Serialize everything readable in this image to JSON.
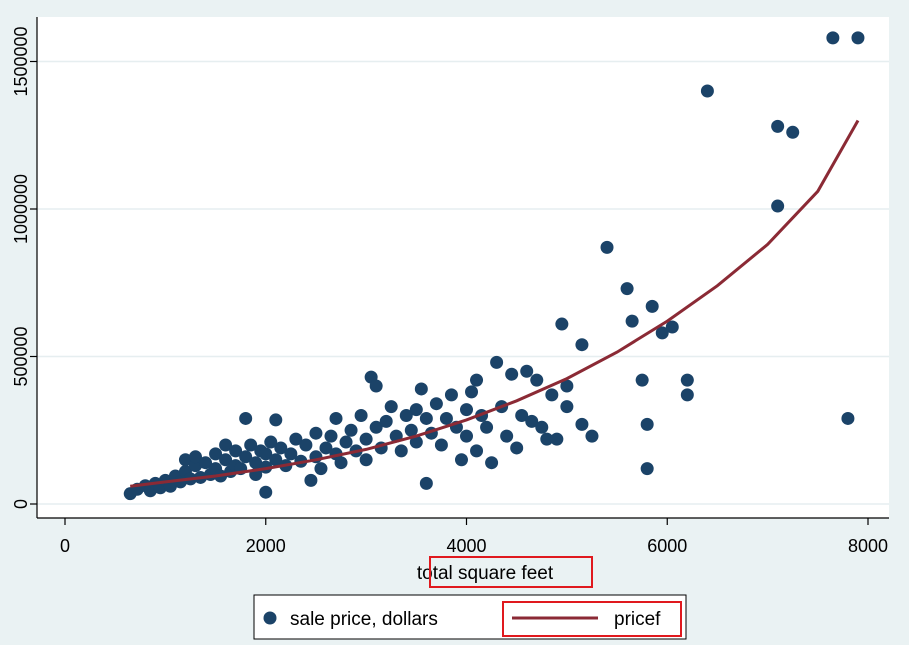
{
  "chart_data": {
    "type": "scatter",
    "xlabel": "total square feet",
    "ylabel": "",
    "xlim": [
      0,
      8000
    ],
    "ylim": [
      0,
      1600000
    ],
    "x_ticks": [
      0,
      2000,
      4000,
      6000,
      8000
    ],
    "y_ticks": [
      0,
      500000,
      1000000,
      1500000
    ],
    "x_tick_labels": [
      "0",
      "2000",
      "4000",
      "6000",
      "8000"
    ],
    "y_tick_labels": [
      "0",
      "500000",
      "1000000",
      "1500000"
    ],
    "grid": "horizontal",
    "legend_position": "bottom",
    "legend": [
      {
        "label": "sale price, dollars",
        "kind": "marker"
      },
      {
        "label": "pricef",
        "kind": "line"
      }
    ],
    "annotations": [
      "highlight box around 'square feet'",
      "highlight box around 'pricef' legend entry"
    ],
    "colors": {
      "points": "#1b4368",
      "line": "#8b2a35",
      "highlight": "#e0191e",
      "plot_bg": "#ffffff",
      "page_bg": "#eaf2f3",
      "grid": "#e6eef0"
    },
    "series": [
      {
        "name": "sale price, dollars",
        "kind": "scatter",
        "points": [
          [
            650,
            35000
          ],
          [
            720,
            50000
          ],
          [
            800,
            62000
          ],
          [
            850,
            45000
          ],
          [
            900,
            70000
          ],
          [
            950,
            55000
          ],
          [
            1000,
            80000
          ],
          [
            1050,
            60000
          ],
          [
            1100,
            95000
          ],
          [
            1150,
            75000
          ],
          [
            1200,
            110000
          ],
          [
            1200,
            150000
          ],
          [
            1250,
            85000
          ],
          [
            1300,
            130000
          ],
          [
            1300,
            160000
          ],
          [
            1350,
            90000
          ],
          [
            1400,
            140000
          ],
          [
            1450,
            100000
          ],
          [
            1500,
            120000
          ],
          [
            1500,
            170000
          ],
          [
            1550,
            95000
          ],
          [
            1600,
            150000
          ],
          [
            1600,
            200000
          ],
          [
            1650,
            110000
          ],
          [
            1700,
            130000
          ],
          [
            1700,
            180000
          ],
          [
            1750,
            120000
          ],
          [
            1800,
            160000
          ],
          [
            1800,
            290000
          ],
          [
            1850,
            200000
          ],
          [
            1900,
            100000
          ],
          [
            1900,
            140000
          ],
          [
            1950,
            180000
          ],
          [
            2000,
            125000
          ],
          [
            2000,
            170000
          ],
          [
            2000,
            40000
          ],
          [
            2050,
            210000
          ],
          [
            2100,
            150000
          ],
          [
            2100,
            285000
          ],
          [
            2150,
            190000
          ],
          [
            2200,
            130000
          ],
          [
            2250,
            170000
          ],
          [
            2300,
            220000
          ],
          [
            2350,
            145000
          ],
          [
            2400,
            200000
          ],
          [
            2450,
            80000
          ],
          [
            2500,
            160000
          ],
          [
            2500,
            240000
          ],
          [
            2550,
            120000
          ],
          [
            2600,
            190000
          ],
          [
            2650,
            230000
          ],
          [
            2700,
            170000
          ],
          [
            2700,
            290000
          ],
          [
            2750,
            140000
          ],
          [
            2800,
            210000
          ],
          [
            2850,
            250000
          ],
          [
            2900,
            180000
          ],
          [
            2950,
            300000
          ],
          [
            3000,
            220000
          ],
          [
            3000,
            150000
          ],
          [
            3050,
            430000
          ],
          [
            3100,
            260000
          ],
          [
            3100,
            400000
          ],
          [
            3150,
            190000
          ],
          [
            3200,
            280000
          ],
          [
            3250,
            330000
          ],
          [
            3300,
            230000
          ],
          [
            3350,
            180000
          ],
          [
            3400,
            300000
          ],
          [
            3450,
            250000
          ],
          [
            3500,
            320000
          ],
          [
            3500,
            210000
          ],
          [
            3550,
            390000
          ],
          [
            3600,
            70000
          ],
          [
            3600,
            290000
          ],
          [
            3650,
            240000
          ],
          [
            3700,
            340000
          ],
          [
            3750,
            200000
          ],
          [
            3800,
            290000
          ],
          [
            3850,
            370000
          ],
          [
            3900,
            260000
          ],
          [
            3950,
            150000
          ],
          [
            4000,
            230000
          ],
          [
            4000,
            320000
          ],
          [
            4050,
            380000
          ],
          [
            4100,
            180000
          ],
          [
            4100,
            420000
          ],
          [
            4150,
            300000
          ],
          [
            4200,
            260000
          ],
          [
            4250,
            140000
          ],
          [
            4300,
            480000
          ],
          [
            4350,
            330000
          ],
          [
            4400,
            230000
          ],
          [
            4450,
            440000
          ],
          [
            4500,
            190000
          ],
          [
            4550,
            300000
          ],
          [
            4600,
            450000
          ],
          [
            4650,
            280000
          ],
          [
            4700,
            420000
          ],
          [
            4750,
            260000
          ],
          [
            4800,
            220000
          ],
          [
            4850,
            370000
          ],
          [
            4900,
            220000
          ],
          [
            4950,
            610000
          ],
          [
            5000,
            400000
          ],
          [
            5000,
            330000
          ],
          [
            5150,
            540000
          ],
          [
            5150,
            270000
          ],
          [
            5250,
            230000
          ],
          [
            5400,
            870000
          ],
          [
            5600,
            730000
          ],
          [
            5650,
            620000
          ],
          [
            5750,
            420000
          ],
          [
            5800,
            270000
          ],
          [
            5800,
            120000
          ],
          [
            5850,
            670000
          ],
          [
            5950,
            580000
          ],
          [
            6050,
            600000
          ],
          [
            6200,
            420000
          ],
          [
            6200,
            370000
          ],
          [
            6400,
            1400000
          ],
          [
            7100,
            1280000
          ],
          [
            7100,
            1010000
          ],
          [
            7250,
            1260000
          ],
          [
            7650,
            1580000
          ],
          [
            7800,
            290000
          ],
          [
            7900,
            1580000
          ]
        ]
      },
      {
        "name": "pricef",
        "kind": "line",
        "points": [
          [
            650,
            60000
          ],
          [
            1000,
            75000
          ],
          [
            1500,
            95000
          ],
          [
            2000,
            120000
          ],
          [
            2500,
            150000
          ],
          [
            3000,
            185000
          ],
          [
            3500,
            230000
          ],
          [
            4000,
            285000
          ],
          [
            4500,
            350000
          ],
          [
            5000,
            425000
          ],
          [
            5500,
            515000
          ],
          [
            6000,
            620000
          ],
          [
            6500,
            740000
          ],
          [
            7000,
            880000
          ],
          [
            7500,
            1060000
          ],
          [
            7900,
            1300000
          ]
        ]
      }
    ]
  }
}
